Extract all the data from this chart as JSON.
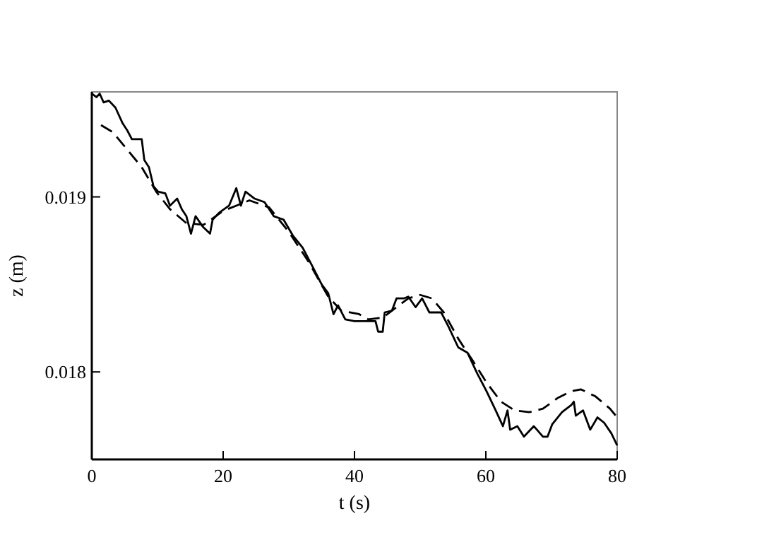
{
  "chart_data": {
    "type": "line",
    "xlabel": "t (s)",
    "ylabel": "z (m)",
    "xlim": [
      0,
      80
    ],
    "ylim": [
      0.0175,
      0.0196
    ],
    "xticks": [
      0,
      20,
      40,
      60,
      80
    ],
    "yticks": [
      0.018,
      0.019
    ],
    "grid": false,
    "series": [
      {
        "color": "#000000",
        "line_style": "solid",
        "x": [
          0,
          0.7,
          1.2,
          1.8,
          2.6,
          3.6,
          4.7,
          5.4,
          6.1,
          7.6,
          8,
          8.7,
          9.4,
          10.1,
          11.2,
          11.9,
          13,
          13.7,
          14.4,
          15.1,
          15.8,
          16.9,
          18,
          18.4,
          19.4,
          20.9,
          22,
          22.7,
          23.4,
          24.8,
          26.3,
          27.7,
          29.2,
          30.6,
          32.1,
          33.5,
          35,
          36,
          36.8,
          37.5,
          38.6,
          40,
          40.7,
          43.2,
          43.6,
          44.3,
          44.6,
          45.7,
          46.4,
          47.5,
          48.2,
          49.3,
          50.3,
          51.4,
          53.2,
          54.3,
          55.8,
          57.2,
          58.7,
          60.1,
          61.5,
          62.6,
          63.3,
          63.7,
          64.8,
          65.8,
          67.3,
          68.7,
          69.4,
          70.1,
          71.6,
          73,
          73.4,
          73.7,
          74.8,
          75.9,
          77,
          78,
          79.1,
          80
        ],
        "values": [
          0.01959,
          0.01957,
          0.01959,
          0.01954,
          0.01955,
          0.01951,
          0.01942,
          0.01938,
          0.01933,
          0.01933,
          0.01921,
          0.01917,
          0.01906,
          0.01903,
          0.01902,
          0.01895,
          0.01899,
          0.01893,
          0.01889,
          0.01879,
          0.01889,
          0.01883,
          0.01879,
          0.01887,
          0.01891,
          0.01895,
          0.01905,
          0.01895,
          0.01903,
          0.01899,
          0.01897,
          0.01889,
          0.01887,
          0.01878,
          0.01871,
          0.01861,
          0.0185,
          0.01845,
          0.01833,
          0.01838,
          0.0183,
          0.01829,
          0.01829,
          0.01829,
          0.01823,
          0.01823,
          0.01834,
          0.01835,
          0.01842,
          0.01842,
          0.01843,
          0.01837,
          0.01842,
          0.01834,
          0.01834,
          0.01826,
          0.01814,
          0.01811,
          0.01799,
          0.01789,
          0.01778,
          0.01769,
          0.01778,
          0.01767,
          0.01769,
          0.01763,
          0.01769,
          0.01763,
          0.01763,
          0.0177,
          0.01777,
          0.01781,
          0.01783,
          0.01775,
          0.01778,
          0.01767,
          0.01774,
          0.01771,
          0.01765,
          0.01758
        ]
      },
      {
        "color": "#000000",
        "line_style": "dashed",
        "x": [
          1.4,
          3.2,
          5.4,
          7.6,
          9.8,
          11.9,
          14.4,
          17,
          20,
          24,
          27,
          30,
          33,
          36,
          38,
          40.7,
          42.1,
          44.3,
          46.4,
          48.2,
          50,
          51.8,
          53.6,
          55.8,
          57.9,
          60.1,
          62.3,
          64.4,
          66.6,
          68.7,
          70.9,
          73,
          74.5,
          76.7,
          78.9,
          80
        ],
        "values": [
          0.01941,
          0.01937,
          0.01927,
          0.01917,
          0.01903,
          0.01893,
          0.01885,
          0.01884,
          0.01892,
          0.01898,
          0.01894,
          0.0188,
          0.01863,
          0.01843,
          0.01835,
          0.01833,
          0.0183,
          0.01831,
          0.01837,
          0.01842,
          0.01844,
          0.01842,
          0.01834,
          0.01819,
          0.01807,
          0.01794,
          0.01783,
          0.01778,
          0.01777,
          0.01779,
          0.01785,
          0.01789,
          0.0179,
          0.01786,
          0.01779,
          0.01774
        ]
      }
    ]
  }
}
